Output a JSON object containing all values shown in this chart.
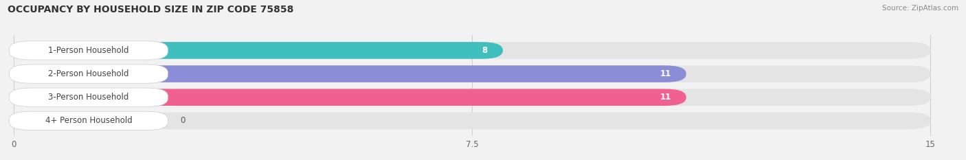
{
  "title": "OCCUPANCY BY HOUSEHOLD SIZE IN ZIP CODE 75858",
  "source": "Source: ZipAtlas.com",
  "categories": [
    "1-Person Household",
    "2-Person Household",
    "3-Person Household",
    "4+ Person Household"
  ],
  "values": [
    8,
    11,
    11,
    0
  ],
  "bar_colors": [
    "#40bfbf",
    "#8b8dd6",
    "#f06090",
    "#f5c9a0"
  ],
  "background_color": "#f2f2f2",
  "bar_bg_color": "#e4e4e4",
  "xlim": [
    0,
    15
  ],
  "xticks": [
    0,
    7.5,
    15
  ],
  "title_fontsize": 10,
  "label_fontsize": 8.5,
  "value_fontsize": 8.5
}
